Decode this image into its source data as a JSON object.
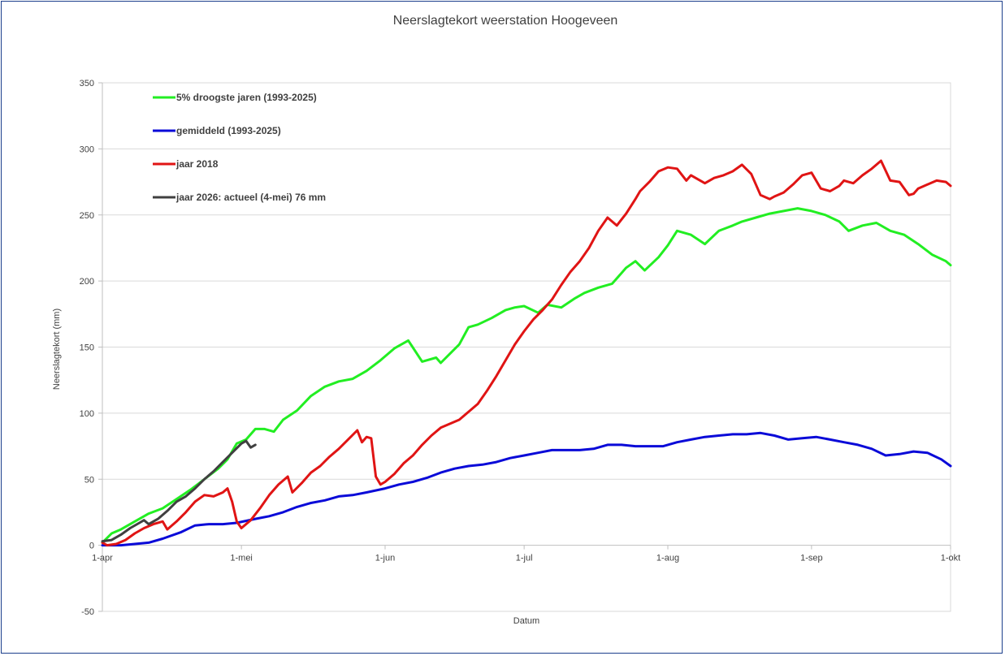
{
  "chart_data": {
    "type": "line",
    "title": "Neerslagtekort weerstation Hoogeveen",
    "xlabel": "Datum",
    "ylabel": "Neerslagtekort (mm)",
    "ylim": [
      -50,
      350
    ],
    "yticks": [
      -50,
      0,
      50,
      100,
      150,
      200,
      250,
      300,
      350
    ],
    "xlim": [
      "2026-04-01",
      "2026-10-01"
    ],
    "xticks": [
      {
        "date": "2026-04-01",
        "label": "1-apr"
      },
      {
        "date": "2026-05-01",
        "label": "1-mei"
      },
      {
        "date": "2026-06-01",
        "label": "1-jun"
      },
      {
        "date": "2026-07-01",
        "label": "1-jul"
      },
      {
        "date": "2026-08-01",
        "label": "1-aug"
      },
      {
        "date": "2026-09-01",
        "label": "1-sep"
      },
      {
        "date": "2026-10-01",
        "label": "1-okt"
      }
    ],
    "grid": true,
    "legend_position": "top-left",
    "series": [
      {
        "name": "5% droogste jaren (1993-2025)",
        "color": "#22ee22",
        "x": [
          "2026-04-01",
          "2026-04-03",
          "2026-04-05",
          "2026-04-08",
          "2026-04-11",
          "2026-04-14",
          "2026-04-17",
          "2026-04-20",
          "2026-04-23",
          "2026-04-26",
          "2026-04-28",
          "2026-04-30",
          "2026-05-02",
          "2026-05-04",
          "2026-05-06",
          "2026-05-08",
          "2026-05-10",
          "2026-05-13",
          "2026-05-16",
          "2026-05-19",
          "2026-05-22",
          "2026-05-25",
          "2026-05-28",
          "2026-05-31",
          "2026-06-03",
          "2026-06-06",
          "2026-06-09",
          "2026-06-12",
          "2026-06-13",
          "2026-06-15",
          "2026-06-17",
          "2026-06-19",
          "2026-06-21",
          "2026-06-24",
          "2026-06-27",
          "2026-06-29",
          "2026-07-01",
          "2026-07-04",
          "2026-07-06",
          "2026-07-09",
          "2026-07-12",
          "2026-07-14",
          "2026-07-17",
          "2026-07-20",
          "2026-07-23",
          "2026-07-25",
          "2026-07-27",
          "2026-07-30",
          "2026-08-01",
          "2026-08-03",
          "2026-08-06",
          "2026-08-09",
          "2026-08-12",
          "2026-08-15",
          "2026-08-17",
          "2026-08-20",
          "2026-08-23",
          "2026-08-26",
          "2026-08-29",
          "2026-09-01",
          "2026-09-04",
          "2026-09-07",
          "2026-09-09",
          "2026-09-12",
          "2026-09-15",
          "2026-09-18",
          "2026-09-21",
          "2026-09-24",
          "2026-09-27",
          "2026-09-30",
          "2026-10-01"
        ],
        "y": [
          2,
          9,
          12,
          18,
          24,
          28,
          35,
          42,
          50,
          58,
          65,
          77,
          80,
          88,
          88,
          86,
          95,
          102,
          113,
          120,
          124,
          126,
          132,
          140,
          149,
          155,
          139,
          142,
          138,
          145,
          152,
          165,
          167,
          172,
          178,
          180,
          181,
          176,
          182,
          180,
          187,
          191,
          195,
          198,
          210,
          215,
          208,
          218,
          227,
          238,
          235,
          228,
          238,
          242,
          245,
          248,
          251,
          253,
          255,
          253,
          250,
          245,
          238,
          242,
          244,
          238,
          235,
          228,
          220,
          215,
          212
        ]
      },
      {
        "name": "gemiddeld (1993-2025)",
        "color": "#0a0ad8",
        "x": [
          "2026-04-01",
          "2026-04-05",
          "2026-04-08",
          "2026-04-11",
          "2026-04-14",
          "2026-04-18",
          "2026-04-21",
          "2026-04-24",
          "2026-04-27",
          "2026-04-30",
          "2026-05-04",
          "2026-05-07",
          "2026-05-10",
          "2026-05-13",
          "2026-05-16",
          "2026-05-19",
          "2026-05-22",
          "2026-05-25",
          "2026-05-28",
          "2026-06-01",
          "2026-06-04",
          "2026-06-07",
          "2026-06-10",
          "2026-06-13",
          "2026-06-16",
          "2026-06-19",
          "2026-06-22",
          "2026-06-25",
          "2026-06-28",
          "2026-07-01",
          "2026-07-04",
          "2026-07-07",
          "2026-07-10",
          "2026-07-13",
          "2026-07-16",
          "2026-07-19",
          "2026-07-22",
          "2026-07-25",
          "2026-07-28",
          "2026-07-31",
          "2026-08-03",
          "2026-08-06",
          "2026-08-09",
          "2026-08-12",
          "2026-08-15",
          "2026-08-18",
          "2026-08-21",
          "2026-08-24",
          "2026-08-27",
          "2026-08-30",
          "2026-09-02",
          "2026-09-05",
          "2026-09-08",
          "2026-09-11",
          "2026-09-14",
          "2026-09-17",
          "2026-09-20",
          "2026-09-23",
          "2026-09-26",
          "2026-09-29",
          "2026-10-01"
        ],
        "y": [
          0,
          0,
          1,
          2,
          5,
          10,
          15,
          16,
          16,
          17,
          20,
          22,
          25,
          29,
          32,
          34,
          37,
          38,
          40,
          43,
          46,
          48,
          51,
          55,
          58,
          60,
          61,
          63,
          66,
          68,
          70,
          72,
          72,
          72,
          73,
          76,
          76,
          75,
          75,
          75,
          78,
          80,
          82,
          83,
          84,
          84,
          85,
          83,
          80,
          81,
          82,
          80,
          78,
          76,
          73,
          68,
          69,
          71,
          70,
          65,
          60
        ]
      },
      {
        "name": "jaar 2018",
        "color": "#e01414",
        "x": [
          "2026-04-01",
          "2026-04-02",
          "2026-04-04",
          "2026-04-06",
          "2026-04-08",
          "2026-04-10",
          "2026-04-12",
          "2026-04-14",
          "2026-04-15",
          "2026-04-17",
          "2026-04-19",
          "2026-04-21",
          "2026-04-23",
          "2026-04-25",
          "2026-04-27",
          "2026-04-28",
          "2026-04-29",
          "2026-04-30",
          "2026-05-01",
          "2026-05-03",
          "2026-05-05",
          "2026-05-07",
          "2026-05-09",
          "2026-05-11",
          "2026-05-12",
          "2026-05-14",
          "2026-05-16",
          "2026-05-18",
          "2026-05-20",
          "2026-05-22",
          "2026-05-24",
          "2026-05-26",
          "2026-05-27",
          "2026-05-28",
          "2026-05-29",
          "2026-05-30",
          "2026-05-31",
          "2026-06-01",
          "2026-06-03",
          "2026-06-05",
          "2026-06-07",
          "2026-06-09",
          "2026-06-11",
          "2026-06-13",
          "2026-06-15",
          "2026-06-17",
          "2026-06-19",
          "2026-06-21",
          "2026-06-23",
          "2026-06-25",
          "2026-06-27",
          "2026-06-29",
          "2026-07-01",
          "2026-07-03",
          "2026-07-05",
          "2026-07-07",
          "2026-07-09",
          "2026-07-11",
          "2026-07-13",
          "2026-07-15",
          "2026-07-17",
          "2026-07-19",
          "2026-07-21",
          "2026-07-23",
          "2026-07-25",
          "2026-07-26",
          "2026-07-28",
          "2026-07-30",
          "2026-08-01",
          "2026-08-03",
          "2026-08-05",
          "2026-08-06",
          "2026-08-07",
          "2026-08-09",
          "2026-08-11",
          "2026-08-13",
          "2026-08-15",
          "2026-08-17",
          "2026-08-19",
          "2026-08-21",
          "2026-08-23",
          "2026-08-24",
          "2026-08-26",
          "2026-08-28",
          "2026-08-30",
          "2026-09-01",
          "2026-09-03",
          "2026-09-05",
          "2026-09-07",
          "2026-09-08",
          "2026-09-10",
          "2026-09-12",
          "2026-09-14",
          "2026-09-16",
          "2026-09-18",
          "2026-09-20",
          "2026-09-22",
          "2026-09-23",
          "2026-09-24",
          "2026-09-26",
          "2026-09-28",
          "2026-09-30",
          "2026-10-01"
        ],
        "y": [
          2,
          0,
          1,
          4,
          9,
          13,
          16,
          18,
          12,
          18,
          25,
          33,
          38,
          37,
          40,
          43,
          33,
          18,
          13,
          19,
          28,
          38,
          46,
          52,
          40,
          47,
          55,
          60,
          67,
          73,
          80,
          87,
          78,
          82,
          81,
          52,
          46,
          48,
          54,
          62,
          68,
          76,
          83,
          89,
          92,
          95,
          101,
          107,
          117,
          128,
          140,
          152,
          162,
          171,
          178,
          186,
          197,
          207,
          215,
          225,
          238,
          248,
          242,
          251,
          262,
          268,
          275,
          283,
          286,
          285,
          276,
          280,
          278,
          274,
          278,
          280,
          283,
          288,
          281,
          265,
          262,
          264,
          267,
          273,
          280,
          282,
          270,
          268,
          272,
          276,
          274,
          280,
          285,
          291,
          276,
          275,
          265,
          266,
          270,
          273,
          276,
          275,
          272
        ]
      },
      {
        "name": "jaar 2026: actueel (4-mei) 76 mm",
        "color": "#404040",
        "x": [
          "2026-04-01",
          "2026-04-03",
          "2026-04-05",
          "2026-04-07",
          "2026-04-09",
          "2026-04-10",
          "2026-04-11",
          "2026-04-13",
          "2026-04-15",
          "2026-04-17",
          "2026-04-19",
          "2026-04-21",
          "2026-04-23",
          "2026-04-25",
          "2026-04-27",
          "2026-04-29",
          "2026-05-01",
          "2026-05-02",
          "2026-05-03",
          "2026-05-04"
        ],
        "y": [
          3,
          4,
          8,
          13,
          17,
          19,
          16,
          20,
          26,
          33,
          37,
          43,
          50,
          56,
          63,
          70,
          77,
          79,
          74,
          76
        ]
      }
    ]
  }
}
